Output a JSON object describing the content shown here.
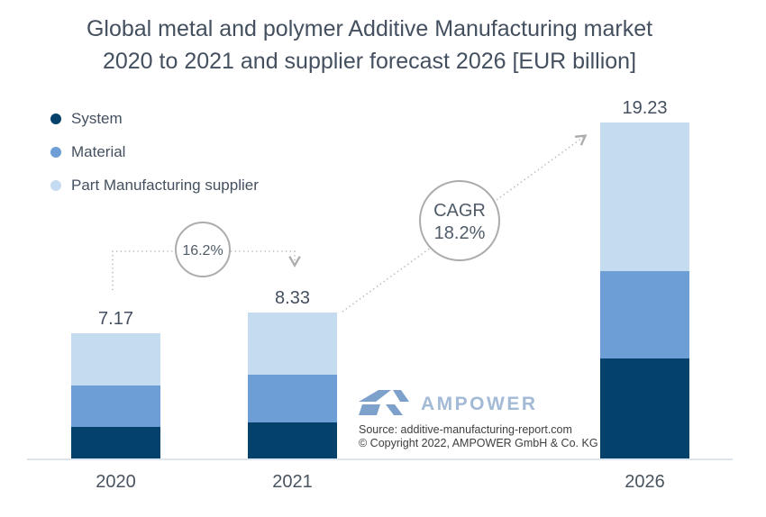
{
  "title": {
    "line1": "Global metal and polymer Additive Manufacturing market",
    "line2": "2020 to 2021 and supplier forecast 2026 [EUR billion]"
  },
  "chart_data": {
    "type": "bar",
    "stacked": true,
    "unit": "EUR billion",
    "categories": [
      "2020",
      "2021",
      "2026"
    ],
    "series": [
      {
        "name": "System",
        "color": "#04426B",
        "values": [
          1.8,
          2.07,
          5.71
        ]
      },
      {
        "name": "Material",
        "color": "#6D9FD6",
        "values": [
          2.37,
          2.72,
          5.01
        ]
      },
      {
        "name": "Part Manufacturing supplier",
        "color": "#C5DBF0",
        "values": [
          3.0,
          3.54,
          8.51
        ]
      }
    ],
    "totals": [
      "7.17",
      "8.33",
      "19.23"
    ],
    "legend_position": "top-left",
    "grid": false,
    "axis_line_color": "#DDE6EF",
    "annotations": {
      "growth_2020_2021": "16.2%",
      "cagr_label": "CAGR",
      "cagr_value": "18.2%"
    }
  },
  "logo": {
    "wordmark": "AMPOWER",
    "mark_color": "#7EA1CB",
    "wordmark_color": "#A3BAD6"
  },
  "source": {
    "line1": "Source: additive-manufacturing-report.com",
    "line2": "© Copyright 2022, AMPOWER GmbH & Co. KG"
  },
  "colors": {
    "title_text": "#44505F",
    "axis_text": "#49545F",
    "annotation_line": "#B9B9B9"
  }
}
